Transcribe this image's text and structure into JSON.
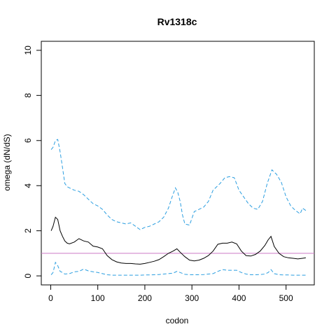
{
  "chart_data": {
    "type": "line",
    "title": "Rv1318c",
    "xlabel": "codon",
    "ylabel": "omega (dN/dS)",
    "xlim": [
      -20,
      560
    ],
    "ylim": [
      -0.4,
      10.4
    ],
    "x_ticks": [
      0,
      100,
      200,
      300,
      400,
      500
    ],
    "y_ticks": [
      0,
      2,
      4,
      6,
      8,
      10
    ],
    "x_tick_labels": [
      "0",
      "100",
      "200",
      "300",
      "400",
      "500"
    ],
    "y_tick_labels": [
      "0",
      "2",
      "4",
      "6",
      "8",
      "10"
    ],
    "grid": false,
    "legend": "none",
    "reference_line": {
      "y": 1,
      "color": "#cc79c5"
    },
    "series": [
      {
        "style": "solid",
        "color": "#000000",
        "x": [
          1,
          5,
          10,
          15,
          20,
          25,
          30,
          35,
          40,
          50,
          60,
          70,
          80,
          90,
          100,
          110,
          120,
          130,
          140,
          150,
          160,
          170,
          180,
          190,
          200,
          210,
          220,
          230,
          240,
          250,
          260,
          268,
          275,
          285,
          295,
          305,
          315,
          325,
          335,
          345,
          355,
          365,
          375,
          385,
          395,
          405,
          415,
          425,
          435,
          445,
          455,
          462,
          468,
          475,
          485,
          495,
          505,
          515,
          525,
          535,
          542
        ],
        "y": [
          2.0,
          2.2,
          2.6,
          2.5,
          2.0,
          1.75,
          1.55,
          1.45,
          1.42,
          1.5,
          1.65,
          1.55,
          1.5,
          1.32,
          1.28,
          1.2,
          0.9,
          0.72,
          0.62,
          0.57,
          0.55,
          0.55,
          0.53,
          0.52,
          0.55,
          0.6,
          0.65,
          0.72,
          0.85,
          1.0,
          1.1,
          1.2,
          1.05,
          0.85,
          0.7,
          0.66,
          0.7,
          0.78,
          0.9,
          1.1,
          1.4,
          1.45,
          1.45,
          1.5,
          1.42,
          1.1,
          0.9,
          0.88,
          0.95,
          1.1,
          1.35,
          1.6,
          1.75,
          1.3,
          1.0,
          0.85,
          0.8,
          0.78,
          0.75,
          0.78,
          0.8
        ]
      },
      {
        "style": "dashed",
        "color": "#2b9ee0",
        "x": [
          1,
          5,
          10,
          15,
          20,
          25,
          30,
          35,
          40,
          45,
          50,
          60,
          70,
          80,
          90,
          100,
          110,
          120,
          130,
          140,
          150,
          160,
          170,
          180,
          190,
          200,
          210,
          220,
          230,
          240,
          250,
          258,
          265,
          270,
          275,
          280,
          285,
          295,
          305,
          315,
          325,
          335,
          345,
          355,
          360,
          370,
          380,
          390,
          400,
          410,
          420,
          430,
          440,
          450,
          460,
          470,
          475,
          480,
          490,
          500,
          510,
          520,
          530,
          535,
          542
        ],
        "y": [
          5.6,
          5.7,
          6.0,
          6.05,
          5.5,
          4.8,
          4.1,
          3.95,
          3.9,
          3.85,
          3.8,
          3.75,
          3.6,
          3.4,
          3.2,
          3.1,
          2.95,
          2.7,
          2.5,
          2.4,
          2.35,
          2.3,
          2.35,
          2.2,
          2.05,
          2.15,
          2.2,
          2.3,
          2.4,
          2.6,
          3.0,
          3.5,
          3.9,
          3.7,
          3.3,
          2.7,
          2.3,
          2.25,
          2.85,
          2.95,
          3.05,
          3.3,
          3.8,
          4.0,
          4.1,
          4.35,
          4.4,
          4.35,
          3.8,
          3.5,
          3.2,
          3.0,
          2.95,
          3.3,
          4.1,
          4.7,
          4.6,
          4.5,
          4.15,
          3.5,
          3.1,
          2.9,
          2.75,
          3.0,
          2.9
        ]
      },
      {
        "style": "dashed",
        "color": "#2b9ee0",
        "x": [
          1,
          5,
          10,
          15,
          20,
          25,
          30,
          40,
          50,
          60,
          70,
          80,
          90,
          100,
          110,
          120,
          130,
          140,
          150,
          160,
          170,
          180,
          190,
          200,
          210,
          220,
          230,
          240,
          250,
          260,
          268,
          275,
          285,
          295,
          305,
          315,
          325,
          335,
          345,
          355,
          365,
          375,
          385,
          395,
          405,
          415,
          425,
          435,
          445,
          455,
          462,
          468,
          475,
          485,
          495,
          505,
          515,
          525,
          535,
          542
        ],
        "y": [
          0.05,
          0.15,
          0.6,
          0.45,
          0.2,
          0.15,
          0.08,
          0.1,
          0.18,
          0.2,
          0.3,
          0.22,
          0.18,
          0.15,
          0.1,
          0.05,
          0.03,
          0.03,
          0.03,
          0.03,
          0.03,
          0.03,
          0.03,
          0.04,
          0.04,
          0.05,
          0.06,
          0.08,
          0.1,
          0.12,
          0.2,
          0.15,
          0.07,
          0.05,
          0.05,
          0.05,
          0.06,
          0.08,
          0.1,
          0.2,
          0.28,
          0.25,
          0.25,
          0.25,
          0.15,
          0.08,
          0.05,
          0.05,
          0.06,
          0.08,
          0.15,
          0.28,
          0.1,
          0.05,
          0.04,
          0.04,
          0.03,
          0.03,
          0.03,
          0.03
        ]
      }
    ]
  }
}
